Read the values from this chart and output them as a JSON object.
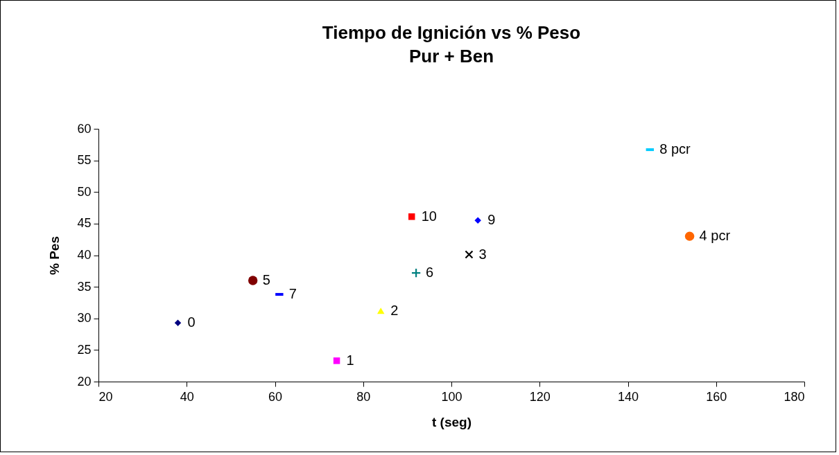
{
  "chart_data": {
    "type": "scatter",
    "title": "Tiempo de Ignición vs % Peso",
    "subtitle": "Pur + Ben",
    "xlabel": "t (seg)",
    "ylabel": "% Pes",
    "xlim": [
      20,
      180
    ],
    "xticks": [
      20,
      40,
      60,
      80,
      100,
      120,
      140,
      160,
      180
    ],
    "ylim": [
      20,
      60
    ],
    "yticks": [
      20,
      25,
      30,
      35,
      40,
      45,
      50,
      55,
      60
    ],
    "series": [
      {
        "name": "0",
        "color": "#000080",
        "marker": "diamond",
        "x": [
          38
        ],
        "values": [
          29.3
        ]
      },
      {
        "name": "1",
        "color": "#ff00ff",
        "marker": "square",
        "x": [
          74
        ],
        "values": [
          23.3
        ]
      },
      {
        "name": "2",
        "color": "#ffff00",
        "marker": "triangle",
        "x": [
          84
        ],
        "values": [
          31.2
        ]
      },
      {
        "name": "3",
        "color": "#000000",
        "marker": "x",
        "x": [
          104
        ],
        "values": [
          40.1
        ]
      },
      {
        "name": "4 pcr",
        "color": "#ff6600",
        "marker": "circle",
        "x": [
          154
        ],
        "values": [
          43
        ]
      },
      {
        "name": "5",
        "color": "#800000",
        "marker": "circle",
        "x": [
          55
        ],
        "values": [
          36
        ]
      },
      {
        "name": "6",
        "color": "#008080",
        "marker": "cross",
        "x": [
          92
        ],
        "values": [
          37.2
        ]
      },
      {
        "name": "7",
        "color": "#0000ff",
        "x": [
          61
        ],
        "values": [
          33.8
        ]
      },
      {
        "name": "8 pcr",
        "color": "#00ccff",
        "x": [
          145
        ],
        "values": [
          56.7
        ]
      },
      {
        "name": "9",
        "color": "#0000ff",
        "marker": "diamond",
        "x": [
          106
        ],
        "values": [
          45.5
        ]
      },
      {
        "name": "10",
        "color": "#ff0000",
        "marker": "square",
        "x": [
          91
        ],
        "values": [
          46.1
        ]
      }
    ]
  }
}
